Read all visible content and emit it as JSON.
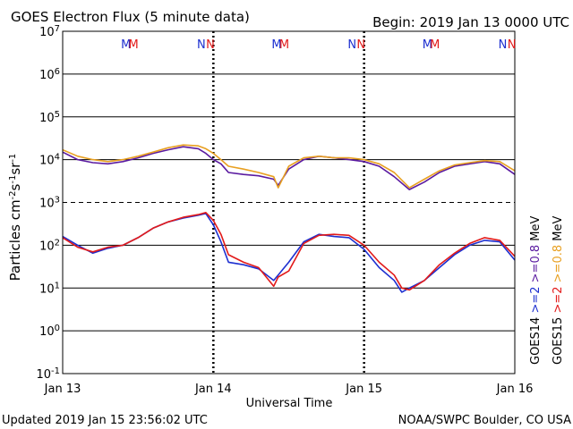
{
  "header": {
    "title": "GOES Electron Flux (5 minute data)",
    "begin": "Begin: 2019 Jan 13 0000 UTC"
  },
  "footer": {
    "updated": "Updated 2019 Jan 15 23:56:02 UTC",
    "source": "NOAA/SWPC Boulder, CO USA"
  },
  "colors": {
    "goes14": "#1d2fd0",
    "goes15": "#e21a1a",
    "ge08_14": "#5a1aa0",
    "ge08_15": "#e8a021"
  },
  "chart_data": {
    "type": "line",
    "title": "GOES Electron Flux (5 minute data)",
    "xlabel": "Universal Time",
    "ylabel": "Particles cm-2s-1sr-1",
    "y_scale": "log",
    "ylim": [
      0.1,
      10000000
    ],
    "yticks": [
      {
        "base": "10",
        "exp": "7"
      },
      {
        "base": "10",
        "exp": "6"
      },
      {
        "base": "10",
        "exp": "5"
      },
      {
        "base": "10",
        "exp": "4"
      },
      {
        "base": "10",
        "exp": "3"
      },
      {
        "base": "10",
        "exp": "2"
      },
      {
        "base": "10",
        "exp": "1"
      },
      {
        "base": "10",
        "exp": "0"
      },
      {
        "base": "10",
        "exp": "-1"
      }
    ],
    "xticks": [
      "Jan 13",
      "Jan 14",
      "Jan 15",
      "Jan 16"
    ],
    "xlim_days": [
      0,
      3
    ],
    "gridlines_y": [
      1,
      10,
      100,
      1000,
      10000,
      100000,
      1000000
    ],
    "dashed_gridline_y": 1000,
    "markers": [
      {
        "label": "M",
        "day": 0.42,
        "color": "#1d2fd0"
      },
      {
        "label": "M",
        "day": 0.47,
        "color": "#e21a1a"
      },
      {
        "label": "N",
        "day": 0.92,
        "color": "#1d2fd0"
      },
      {
        "label": "N",
        "day": 0.98,
        "color": "#e21a1a"
      },
      {
        "label": "M",
        "day": 1.42,
        "color": "#1d2fd0"
      },
      {
        "label": "M",
        "day": 1.47,
        "color": "#e21a1a"
      },
      {
        "label": "N",
        "day": 1.92,
        "color": "#1d2fd0"
      },
      {
        "label": "N",
        "day": 1.98,
        "color": "#e21a1a"
      },
      {
        "label": "M",
        "day": 2.42,
        "color": "#1d2fd0"
      },
      {
        "label": "M",
        "day": 2.47,
        "color": "#e21a1a"
      },
      {
        "label": "N",
        "day": 2.92,
        "color": "#1d2fd0"
      },
      {
        "label": "N",
        "day": 2.98,
        "color": "#e21a1a"
      }
    ],
    "legend": [
      {
        "text": "GOES14",
        "color": "#000000"
      },
      {
        "text": ">=2",
        "color": "#1d2fd0"
      },
      {
        "text": ">=0.8",
        "color": "#5a1aa0"
      },
      {
        "text": "GOES15",
        "color": "#000000"
      },
      {
        "text": ">=2",
        "color": "#e21a1a"
      },
      {
        "text": ">=0.8",
        "color": "#e8a021"
      }
    ],
    "legend_unit": "MeV",
    "series": [
      {
        "name": "GOES14 >=0.8 MeV",
        "color": "#5a1aa0",
        "x": [
          0,
          0.1,
          0.2,
          0.3,
          0.4,
          0.5,
          0.6,
          0.7,
          0.8,
          0.9,
          0.95,
          1.0,
          1.05,
          1.1,
          1.2,
          1.3,
          1.4,
          1.43,
          1.5,
          1.6,
          1.7,
          1.8,
          1.9,
          2.0,
          2.1,
          2.2,
          2.3,
          2.4,
          2.5,
          2.6,
          2.7,
          2.8,
          2.9,
          3.0
        ],
        "y": [
          15000,
          10000,
          8500,
          8000,
          9000,
          11000,
          14000,
          17000,
          20000,
          18000,
          14000,
          10000,
          8000,
          5000,
          4500,
          4200,
          3500,
          2500,
          6000,
          10000,
          12000,
          11000,
          10000,
          9000,
          7000,
          4000,
          2000,
          3000,
          5000,
          7000,
          8000,
          9000,
          8000,
          4500
        ]
      },
      {
        "name": "GOES15 >=0.8 MeV",
        "color": "#e8a021",
        "x": [
          0,
          0.1,
          0.2,
          0.3,
          0.4,
          0.5,
          0.6,
          0.7,
          0.8,
          0.9,
          0.95,
          1.0,
          1.05,
          1.1,
          1.2,
          1.3,
          1.4,
          1.43,
          1.5,
          1.6,
          1.7,
          1.8,
          1.9,
          2.0,
          2.1,
          2.2,
          2.3,
          2.4,
          2.5,
          2.6,
          2.7,
          2.8,
          2.9,
          3.0
        ],
        "y": [
          17000,
          12000,
          10000,
          9000,
          10000,
          12000,
          15000,
          19000,
          22000,
          21000,
          18000,
          14000,
          10000,
          7000,
          6000,
          5000,
          4000,
          2200,
          7000,
          11000,
          12000,
          11000,
          11000,
          10000,
          8000,
          5000,
          2200,
          3500,
          5500,
          7500,
          8500,
          9500,
          9000,
          5500
        ]
      },
      {
        "name": "GOES14 >=2 MeV",
        "color": "#1d2fd0",
        "x": [
          0,
          0.1,
          0.2,
          0.3,
          0.4,
          0.5,
          0.6,
          0.7,
          0.8,
          0.9,
          0.95,
          1.0,
          1.05,
          1.1,
          1.2,
          1.3,
          1.4,
          1.43,
          1.5,
          1.6,
          1.7,
          1.8,
          1.9,
          2.0,
          2.1,
          2.2,
          2.25,
          2.3,
          2.4,
          2.5,
          2.6,
          2.7,
          2.8,
          2.9,
          3.0
        ],
        "y": [
          160,
          100,
          65,
          85,
          100,
          150,
          250,
          350,
          430,
          500,
          550,
          300,
          120,
          40,
          35,
          28,
          15,
          20,
          40,
          120,
          180,
          160,
          150,
          80,
          30,
          15,
          8,
          10,
          15,
          30,
          60,
          100,
          130,
          120,
          45
        ]
      },
      {
        "name": "GOES15 >=2 MeV",
        "color": "#e21a1a",
        "x": [
          0,
          0.1,
          0.2,
          0.3,
          0.4,
          0.5,
          0.6,
          0.7,
          0.8,
          0.9,
          0.95,
          1.0,
          1.05,
          1.1,
          1.2,
          1.3,
          1.4,
          1.43,
          1.5,
          1.6,
          1.7,
          1.8,
          1.9,
          2.0,
          2.1,
          2.2,
          2.25,
          2.3,
          2.4,
          2.5,
          2.6,
          2.7,
          2.8,
          2.9,
          3.0
        ],
        "y": [
          150,
          90,
          70,
          90,
          100,
          150,
          250,
          350,
          450,
          520,
          580,
          380,
          180,
          60,
          40,
          30,
          11,
          18,
          25,
          110,
          170,
          180,
          170,
          100,
          40,
          20,
          10,
          9,
          15,
          35,
          65,
          110,
          150,
          130,
          55
        ]
      }
    ]
  }
}
